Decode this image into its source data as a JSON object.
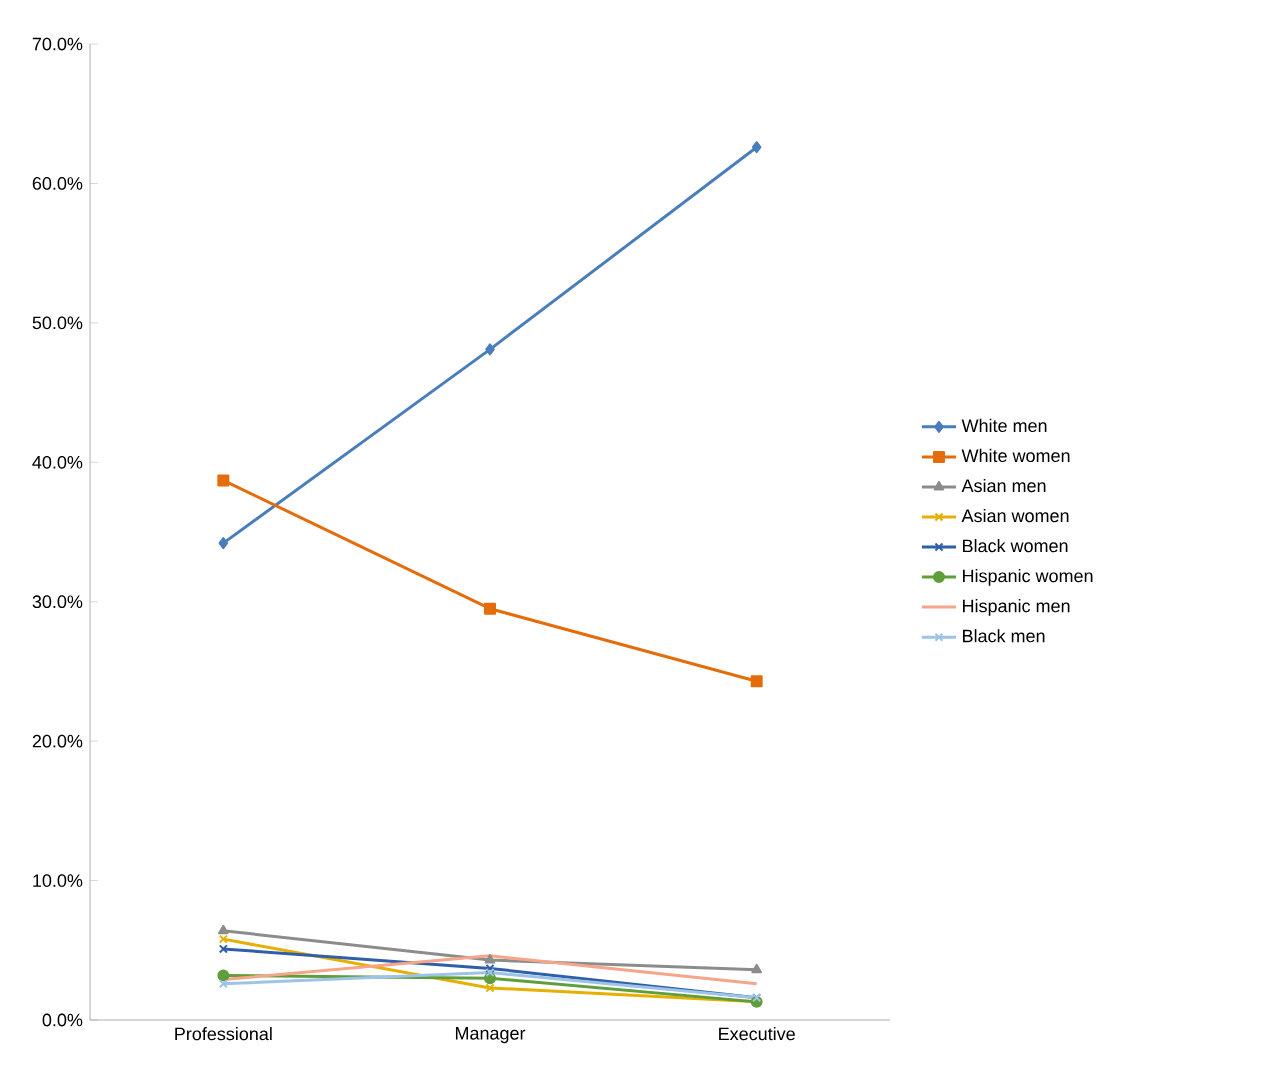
{
  "chart_data": {
    "type": "line",
    "categories": [
      "Professional",
      "Manager",
      "Executive"
    ],
    "series": [
      {
        "name": "White men",
        "color": "#4a7ebb",
        "marker": "diamond",
        "values": [
          34.2,
          48.1,
          62.6
        ]
      },
      {
        "name": "White women",
        "color": "#e46c0a",
        "marker": "square",
        "values": [
          38.7,
          29.5,
          24.3
        ]
      },
      {
        "name": "Asian men",
        "color": "#8c8c8c",
        "marker": "triangle",
        "values": [
          6.4,
          4.3,
          3.6
        ]
      },
      {
        "name": "Asian women",
        "color": "#e5b000",
        "marker": "cross",
        "values": [
          5.8,
          2.3,
          1.3
        ]
      },
      {
        "name": "Black women",
        "color": "#2f5fa8",
        "marker": "cross",
        "values": [
          5.1,
          3.7,
          1.6
        ]
      },
      {
        "name": "Hispanic women",
        "color": "#5f9e3a",
        "marker": "circle",
        "values": [
          3.2,
          3.0,
          1.3
        ]
      },
      {
        "name": "Hispanic men",
        "color": "#f4a58a",
        "marker": "none",
        "values": [
          2.9,
          4.6,
          2.6
        ]
      },
      {
        "name": "Black men",
        "color": "#9dc3e6",
        "marker": "cross",
        "values": [
          2.6,
          3.4,
          1.6
        ]
      }
    ],
    "ylim": [
      0,
      70
    ],
    "yticks": [
      {
        "value": 0,
        "label": "0.0%"
      },
      {
        "value": 10,
        "label": "10.0%"
      },
      {
        "value": 20,
        "label": "20.0%"
      },
      {
        "value": 30,
        "label": "30.0%"
      },
      {
        "value": 40,
        "label": "40.0%"
      },
      {
        "value": 50,
        "label": "50.0%"
      },
      {
        "value": 60,
        "label": "60.0%"
      },
      {
        "value": 70,
        "label": "70.0%"
      }
    ],
    "grid": false,
    "legend": "right"
  }
}
